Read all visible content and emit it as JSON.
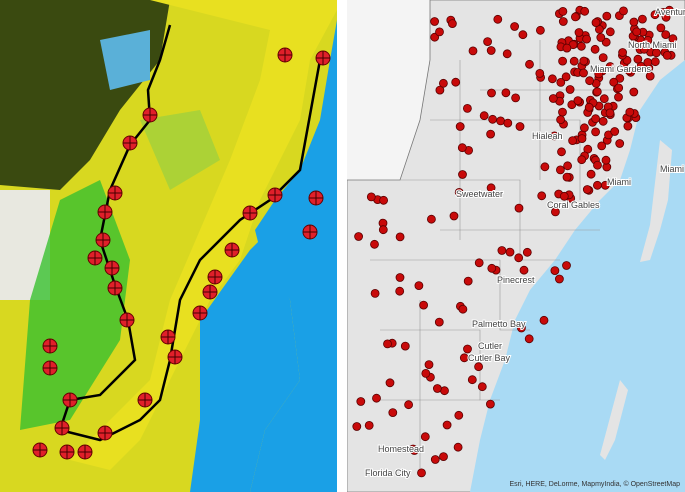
{
  "map": {
    "labels": [
      "Aventura",
      "North Miami",
      "Miami Gardens",
      "Hialeah",
      "Miami Beach",
      "Miami",
      "Sweetwater",
      "Coral Gables",
      "Pinecrest",
      "Palmetto Bay",
      "Cutler",
      "Cutler Bay",
      "Homestead",
      "Florida City"
    ],
    "attribution": "Esri, HERE, DeLorme, MapmyIndia, © OpenStreetMap"
  }
}
